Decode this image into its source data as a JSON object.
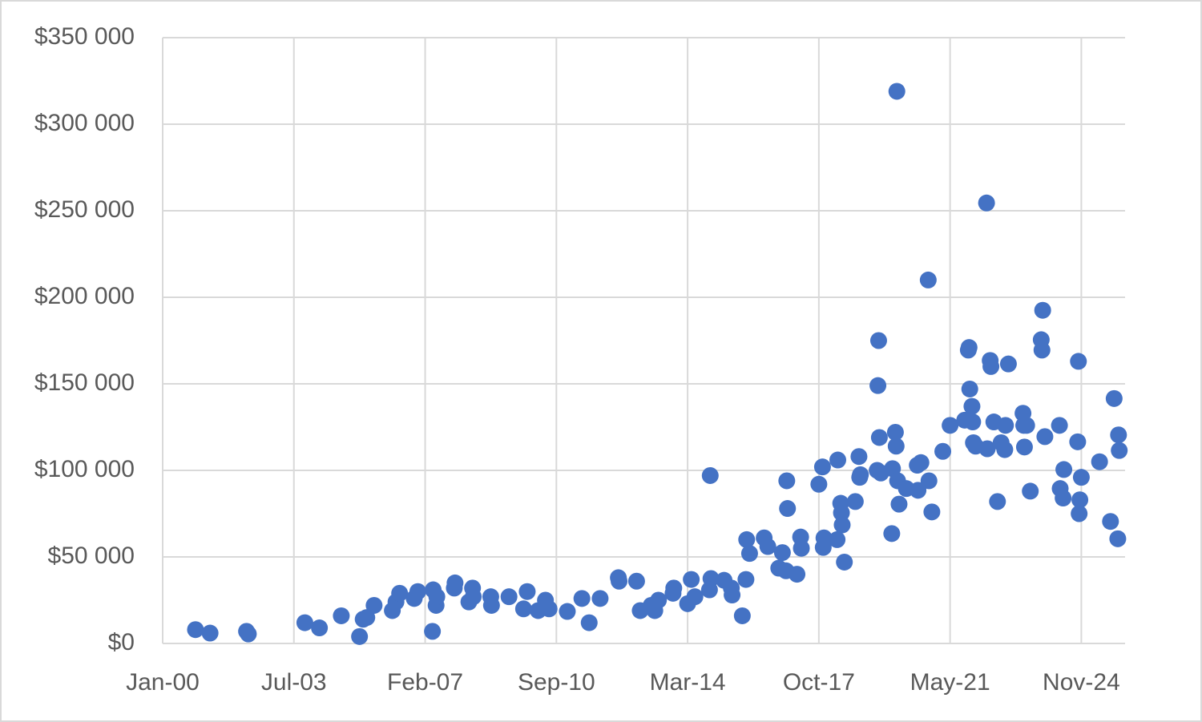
{
  "chart_data": {
    "type": "scatter",
    "color": "#4472c4",
    "grid": true,
    "x": [
      2000.9,
      2001.3,
      2002.3,
      2002.35,
      2003.9,
      2004.3,
      2004.9,
      2005.4,
      2005.5,
      2005.6,
      2005.8,
      2006.3,
      2006.4,
      2006.5,
      2006.9,
      2007.0,
      2007.4,
      2007.42,
      2007.5,
      2007.52,
      2008.0,
      2008.02,
      2008.4,
      2008.5,
      2008.52,
      2009.0,
      2009.02,
      2009.5,
      2009.9,
      2010.0,
      2010.3,
      2010.5,
      2010.6,
      2011.1,
      2011.5,
      2011.7,
      2012.0,
      2012.5,
      2012.52,
      2013.0,
      2013.1,
      2013.4,
      2013.5,
      2013.6,
      2014.0,
      2014.02,
      2014.4,
      2014.6,
      2014.5,
      2015.0,
      2015.02,
      2015.04,
      2015.4,
      2015.6,
      2015.62,
      2015.9,
      2016.0,
      2016.02,
      2016.1,
      2016.5,
      2016.6,
      2016.9,
      2017.0,
      2017.1,
      2017.12,
      2017.14,
      2017.4,
      2017.5,
      2017.52,
      2018.0,
      2018.1,
      2018.12,
      2018.14,
      2018.5,
      2018.52,
      2018.6,
      2018.62,
      2018.64,
      2018.7,
      2019.0,
      2019.1,
      2019.12,
      2019.14,
      2019.6,
      2019.62,
      2019.64,
      2019.66,
      2019.7,
      2020.0,
      2020.02,
      2020.1,
      2020.12,
      2020.14,
      2020.16,
      2020.2,
      2020.4,
      2020.7,
      2020.8,
      2020.72,
      2021.0,
      2021.02,
      2021.1,
      2021.4,
      2021.6,
      2022.0,
      2022.1,
      2022.12,
      2022.14,
      2022.2,
      2022.22,
      2022.24,
      2022.3,
      2022.6,
      2022.62,
      2022.7,
      2022.72,
      2022.8,
      2022.9,
      2023.0,
      2023.1,
      2023.12,
      2023.2,
      2023.6,
      2023.62,
      2023.64,
      2023.7,
      2023.8,
      2024.1,
      2024.12,
      2024.14,
      2024.2,
      2024.6,
      2024.62,
      2024.7,
      2024.72,
      2025.1,
      2025.12,
      2025.14,
      2025.16,
      2025.2,
      2025.7,
      2026.0,
      2026.1,
      2026.2,
      2026.22,
      2026.24
    ],
    "values": [
      8000,
      6000,
      7000,
      5500,
      12000,
      9000,
      16000,
      4000,
      14000,
      15000,
      22000,
      19000,
      24000,
      29000,
      26000,
      30000,
      7000,
      31000,
      22000,
      27000,
      32000,
      35000,
      24000,
      32000,
      27000,
      27000,
      22000,
      27000,
      20000,
      30000,
      19000,
      25000,
      20000,
      18500,
      26000,
      12000,
      26000,
      38000,
      36000,
      36000,
      19000,
      22000,
      19000,
      25000,
      29000,
      32000,
      23000,
      27000,
      37000,
      31000,
      97000,
      37500,
      36500,
      32000,
      28000,
      16000,
      37000,
      60000,
      52000,
      61000,
      56000,
      43500,
      52500,
      42000,
      94000,
      78000,
      40000,
      61500,
      55000,
      92000,
      102000,
      55500,
      61000,
      60000,
      106000,
      81000,
      75500,
      68500,
      47000,
      82000,
      108000,
      96000,
      97500,
      100000,
      149000,
      175000,
      119000,
      98500,
      63500,
      101000,
      122000,
      114000,
      319000,
      94000,
      80500,
      89500,
      103000,
      104500,
      88500,
      210000,
      94000,
      76000,
      111000,
      126000,
      129000,
      169500,
      171000,
      147000,
      137000,
      128000,
      116000,
      114000,
      254500,
      112500,
      163500,
      160000,
      128000,
      82000,
      116000,
      112000,
      126000,
      161500,
      133000,
      126000,
      113500,
      126000,
      88000,
      175500,
      169500,
      192500,
      119500,
      126000,
      89500,
      84000,
      100500,
      116500,
      163000,
      75000,
      83000,
      96000,
      105000,
      70500,
      141500,
      60500,
      120500,
      111500
    ],
    "xlim": [
      2000,
      2026.4
    ],
    "xticks": [
      {
        "value": 2000,
        "label": "Jan-00"
      },
      {
        "value": 2003.6,
        "label": "Jul-03"
      },
      {
        "value": 2007.2,
        "label": "Feb-07"
      },
      {
        "value": 2010.8,
        "label": "Sep-10"
      },
      {
        "value": 2014.4,
        "label": "Mar-14"
      },
      {
        "value": 2018.0,
        "label": "Oct-17"
      },
      {
        "value": 2021.6,
        "label": "May-21"
      },
      {
        "value": 2025.2,
        "label": "Nov-24"
      }
    ],
    "ylim": [
      0,
      350000
    ],
    "yticks": [
      {
        "value": 0,
        "label": "$0"
      },
      {
        "value": 50000,
        "label": "$50 000"
      },
      {
        "value": 100000,
        "label": "$100 000"
      },
      {
        "value": 150000,
        "label": "$150 000"
      },
      {
        "value": 200000,
        "label": "$200 000"
      },
      {
        "value": 250000,
        "label": "$250 000"
      },
      {
        "value": 300000,
        "label": "$300 000"
      },
      {
        "value": 350000,
        "label": "$350 000"
      }
    ]
  }
}
